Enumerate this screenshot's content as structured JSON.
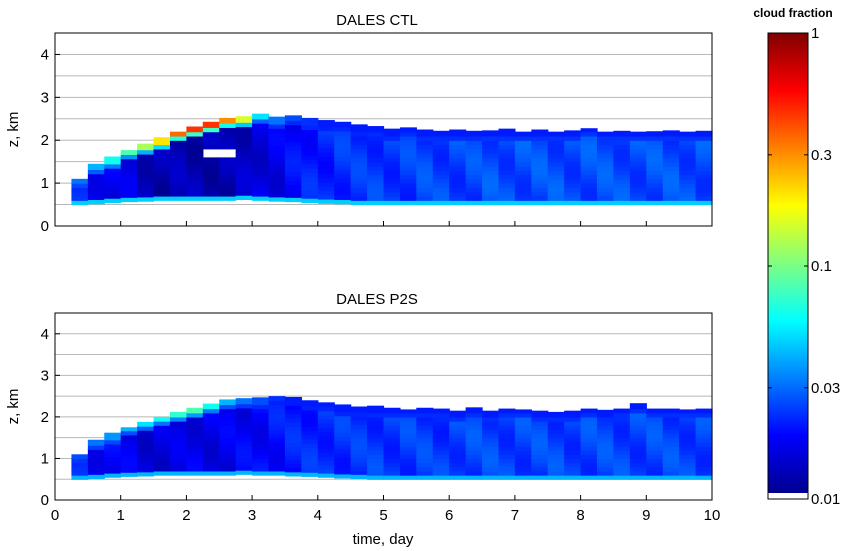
{
  "colors": {
    "colormap": [
      "#00008f",
      "#0000ff",
      "#0080ff",
      "#00ffff",
      "#80ff80",
      "#ffff00",
      "#ff8000",
      "#ff0000",
      "#800000"
    ],
    "below_min": "#ffffff",
    "grid": "#b8b8b8",
    "axis": "#000000"
  },
  "chart_data": {
    "type": "heatmap",
    "shared_x": {
      "label": "time, day",
      "range": [
        0,
        10
      ],
      "ticks": [
        0,
        1,
        2,
        3,
        4,
        5,
        6,
        7,
        8,
        9,
        10
      ],
      "tick_labels": [
        "0",
        "1",
        "2",
        "3",
        "4",
        "5",
        "6",
        "7",
        "8",
        "9",
        "10"
      ],
      "bin_start": 0.25,
      "bin_width": 0.25
    },
    "panels": [
      {
        "title": "DALES CTL",
        "ylabel": "z, km",
        "ylim": [
          0,
          4.5
        ],
        "yticks": [
          0,
          1,
          2,
          3,
          4
        ],
        "ytick_labels": [
          "0",
          "1",
          "2",
          "3",
          "4"
        ],
        "grid": "horizontal",
        "cloud_base_km": [
          0.5,
          0.52,
          0.55,
          0.57,
          0.58,
          0.6,
          0.6,
          0.6,
          0.6,
          0.6,
          0.62,
          0.6,
          0.58,
          0.57,
          0.55,
          0.53,
          0.52,
          0.5,
          0.5,
          0.5,
          0.5,
          0.5,
          0.5,
          0.5,
          0.5,
          0.5,
          0.5,
          0.5,
          0.5,
          0.5,
          0.5,
          0.5,
          0.5,
          0.5,
          0.5,
          0.5,
          0.5,
          0.5,
          0.5
        ],
        "cloud_top_km": [
          1.1,
          1.45,
          1.62,
          1.77,
          1.92,
          2.07,
          2.2,
          2.32,
          2.43,
          2.52,
          2.56,
          2.62,
          2.55,
          2.58,
          2.52,
          2.47,
          2.43,
          2.37,
          2.33,
          2.27,
          2.3,
          2.25,
          2.22,
          2.25,
          2.22,
          2.23,
          2.27,
          2.2,
          2.25,
          2.2,
          2.23,
          2.28,
          2.2,
          2.22,
          2.2,
          2.21,
          2.23,
          2.2,
          2.22
        ],
        "layer_max_fraction": [
          0.03,
          0.04,
          0.06,
          0.08,
          0.12,
          0.2,
          0.35,
          0.45,
          0.45,
          0.3,
          0.15,
          0.05,
          0.03,
          0.025,
          0.022,
          0.02,
          0.02,
          0.02,
          0.02,
          0.02,
          0.02,
          0.02,
          0.02,
          0.02,
          0.02,
          0.02,
          0.02,
          0.02,
          0.02,
          0.02,
          0.02,
          0.02,
          0.02,
          0.02,
          0.02,
          0.02,
          0.02,
          0.02,
          0.02
        ],
        "interior_fraction": [
          0.02,
          0.018,
          0.016,
          0.015,
          0.013,
          0.012,
          0.012,
          0.012,
          0.012,
          0.012,
          0.013,
          0.015,
          0.016,
          0.018,
          0.02,
          0.021,
          0.022,
          0.022,
          0.023,
          0.023,
          0.023,
          0.024,
          0.024,
          0.024,
          0.024,
          0.025,
          0.025,
          0.025,
          0.025,
          0.025,
          0.025,
          0.025,
          0.025,
          0.025,
          0.025,
          0.025,
          0.025,
          0.025,
          0.025
        ],
        "base_fraction": 0.045,
        "clear_gap": {
          "x": [
            2.25,
            2.75
          ],
          "z": [
            1.65,
            1.85
          ]
        }
      },
      {
        "title": "DALES P2S",
        "ylabel": "z, km",
        "ylim": [
          0,
          4.5
        ],
        "yticks": [
          0,
          1,
          2,
          3,
          4
        ],
        "ytick_labels": [
          "0",
          "1",
          "2",
          "3",
          "4"
        ],
        "grid": "horizontal",
        "cloud_base_km": [
          0.5,
          0.52,
          0.55,
          0.57,
          0.58,
          0.6,
          0.6,
          0.6,
          0.6,
          0.6,
          0.62,
          0.6,
          0.6,
          0.58,
          0.57,
          0.55,
          0.53,
          0.52,
          0.5,
          0.5,
          0.5,
          0.5,
          0.5,
          0.5,
          0.5,
          0.5,
          0.5,
          0.5,
          0.5,
          0.5,
          0.5,
          0.5,
          0.5,
          0.5,
          0.5,
          0.5,
          0.5,
          0.5,
          0.5
        ],
        "cloud_top_km": [
          1.1,
          1.45,
          1.62,
          1.75,
          1.88,
          2.0,
          2.12,
          2.22,
          2.32,
          2.42,
          2.45,
          2.47,
          2.5,
          2.48,
          2.4,
          2.35,
          2.3,
          2.25,
          2.27,
          2.22,
          2.18,
          2.22,
          2.2,
          2.15,
          2.23,
          2.15,
          2.2,
          2.18,
          2.15,
          2.12,
          2.15,
          2.2,
          2.17,
          2.2,
          2.33,
          2.2,
          2.2,
          2.18,
          2.2
        ],
        "layer_max_fraction": [
          0.025,
          0.03,
          0.035,
          0.04,
          0.05,
          0.06,
          0.07,
          0.08,
          0.06,
          0.04,
          0.03,
          0.025,
          0.022,
          0.02,
          0.02,
          0.02,
          0.02,
          0.02,
          0.02,
          0.02,
          0.02,
          0.02,
          0.02,
          0.02,
          0.02,
          0.02,
          0.02,
          0.02,
          0.02,
          0.02,
          0.02,
          0.02,
          0.02,
          0.02,
          0.02,
          0.02,
          0.02,
          0.02,
          0.02
        ],
        "interior_fraction": [
          0.02,
          0.018,
          0.017,
          0.016,
          0.015,
          0.015,
          0.015,
          0.016,
          0.016,
          0.016,
          0.017,
          0.018,
          0.019,
          0.02,
          0.021,
          0.022,
          0.022,
          0.022,
          0.023,
          0.023,
          0.023,
          0.023,
          0.023,
          0.024,
          0.024,
          0.024,
          0.024,
          0.024,
          0.024,
          0.024,
          0.024,
          0.024,
          0.024,
          0.024,
          0.024,
          0.024,
          0.024,
          0.024,
          0.024
        ],
        "base_fraction": 0.04,
        "clear_gap": null
      }
    ],
    "colorbar": {
      "label": "cloud fraction",
      "scale": "log",
      "range": [
        0.01,
        1
      ],
      "ticks": [
        0.01,
        0.03,
        0.1,
        0.3,
        1
      ],
      "tick_labels": [
        "0.01",
        "0.03",
        "0.1",
        "0.3",
        "1"
      ]
    }
  }
}
